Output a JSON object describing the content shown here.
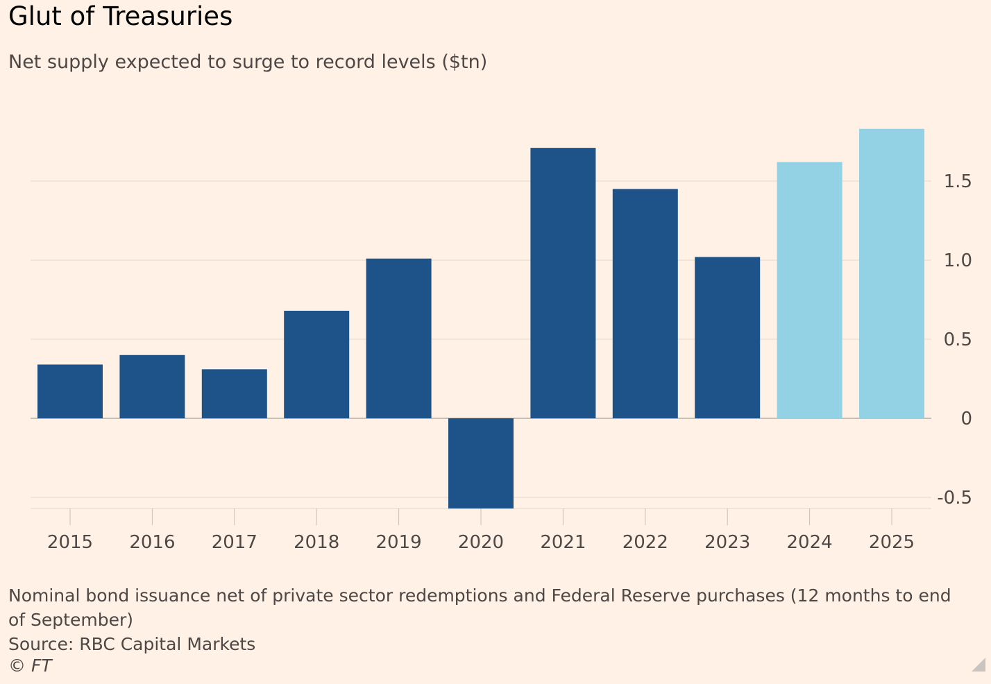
{
  "title": "Glut of Treasuries",
  "subtitle": "Net supply expected to surge to record levels ($tn)",
  "footnote": "Nominal bond issuance net of private sector redemptions and Federal Reserve purchases (12 months to end of September)",
  "source": "Source: RBC Capital Markets",
  "copyright": "© FT",
  "colors": {
    "background": "#FFF1E5",
    "actual_bar": "#1D5389",
    "forecast_bar": "#93D1E4",
    "gridline": "#E3D9D0",
    "zero_line": "#B5ADA7",
    "tick_text": "#4D4845"
  },
  "chart_data": {
    "type": "bar",
    "title": "Glut of Treasuries",
    "subtitle": "Net supply expected to surge to record levels ($tn)",
    "categories": [
      "2015",
      "2016",
      "2017",
      "2018",
      "2019",
      "2020",
      "2021",
      "2022",
      "2023",
      "2024",
      "2025"
    ],
    "values": [
      0.34,
      0.4,
      0.31,
      0.68,
      1.01,
      -0.57,
      1.71,
      1.45,
      1.02,
      1.62,
      1.83
    ],
    "forecast": [
      false,
      false,
      false,
      false,
      false,
      false,
      false,
      false,
      false,
      true,
      true
    ],
    "yticks": [
      -0.5,
      0,
      0.5,
      1.0,
      1.5
    ],
    "ytick_labels": [
      "-0.5",
      "0",
      "0.5",
      "1.0",
      "1.5"
    ],
    "ylim": [
      -0.57,
      1.9
    ],
    "y_axis_position": "right",
    "grid": true,
    "legend": false
  }
}
